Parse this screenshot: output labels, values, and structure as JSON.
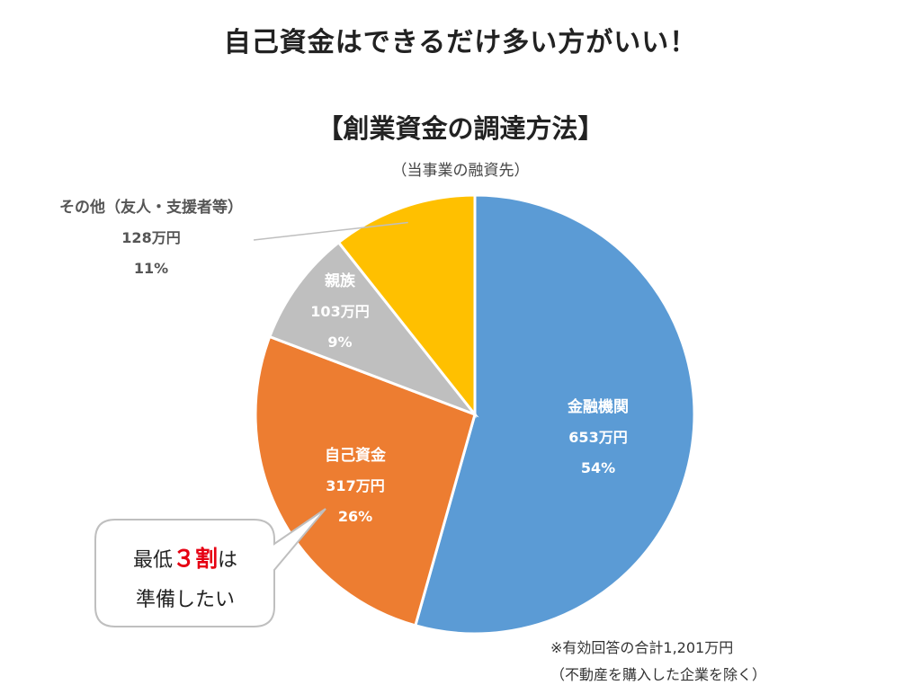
{
  "headline": "自己資金はできるだけ多い方がいい！",
  "chart_data": {
    "type": "pie",
    "title": "【創業資金の調達方法】",
    "subtitle": "（当事業の融資先）",
    "unit": "万円",
    "slices": [
      {
        "name": "金融機関",
        "value": 653,
        "value_label": "653万円",
        "percent_label": "54%",
        "color": "#5b9bd5",
        "label_color": "#ffffff"
      },
      {
        "name": "自己資金",
        "value": 317,
        "value_label": "317万円",
        "percent_label": "26%",
        "color": "#ed7d31",
        "label_color": "#ffffff"
      },
      {
        "name": "親族",
        "value": 103,
        "value_label": "103万円",
        "percent_label": "9%",
        "color": "#bfbfbf",
        "label_color": "#ffffff"
      },
      {
        "name": "その他（友人・支援者等）",
        "value": 128,
        "value_label": "128万円",
        "percent_label": "11%",
        "color": "#ffc000",
        "label_color": "#555555"
      }
    ],
    "footnote_lines": [
      "※有効回答の合計1,201万円",
      "（不動産を購入した企業を除く）"
    ]
  },
  "callout": {
    "line1_prefix": "最低",
    "line1_highlight": "３割",
    "line1_suffix": "は",
    "line2": "準備したい"
  }
}
